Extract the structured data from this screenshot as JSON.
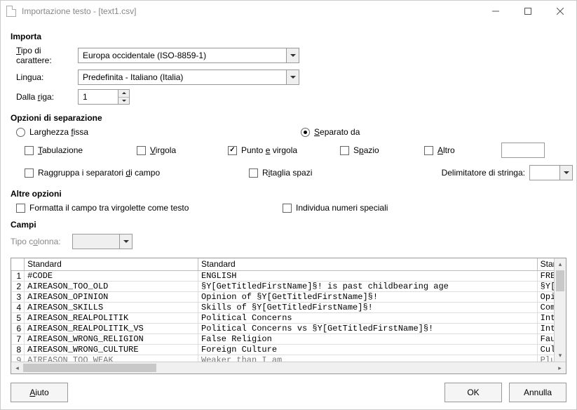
{
  "window": {
    "title": "Importazione testo - [text1.csv]"
  },
  "sections": {
    "importa": "Importa",
    "sep_opts": "Opzioni di separazione",
    "altre": "Altre opzioni",
    "campi": "Campi"
  },
  "labels": {
    "charset": "Tipo di carattere:",
    "lang": "Lingua:",
    "from_row": "Dalla riga:",
    "column_type": "Tipo colonna:",
    "delim_str": "Delimitatore di stringa:"
  },
  "values": {
    "charset_value": "Europa occidentale (ISO-8859-1)",
    "lang_value": "Predefinita - Italiano (Italia)",
    "from_row_value": "1",
    "column_type_value": "",
    "delim_value": "",
    "other_value": ""
  },
  "sep": {
    "fixed_width": "Larghezza fissa",
    "separated_by": "Separato da",
    "tab": "Tabulazione",
    "comma": "Virgola",
    "semicolon": "Punto e virgola",
    "space": "Spazio",
    "other": "Altro",
    "merge": "Raggruppa i separatori di campo",
    "trim": "Ritaglia spazi"
  },
  "other_opts": {
    "quoted_as_text": "Formatta il campo tra virgolette come testo",
    "detect_numbers": "Individua numeri speciali"
  },
  "table": {
    "headers": [
      "Standard",
      "Standard",
      "Stand"
    ],
    "rows": [
      [
        "#CODE",
        "ENGLISH",
        "FREN"
      ],
      [
        "AIREASON_TOO_OLD",
        "§Y[GetTitledFirstName]§! is past childbearing age",
        "§Y[G"
      ],
      [
        "AIREASON_OPINION",
        "Opinion of §Y[GetTitledFirstName]§!",
        "Opin"
      ],
      [
        "AIREASON_SKILLS",
        "Skills of §Y[GetTitledFirstName]§!",
        "Comp"
      ],
      [
        "AIREASON_REALPOLITIK",
        "Political Concerns",
        "Inté"
      ],
      [
        "AIREASON_REALPOLITIK_VS",
        "Political Concerns vs §Y[GetTitledFirstName]§!",
        "Inté"
      ],
      [
        "AIREASON_WRONG_RELIGION",
        "False Religion",
        "Faus"
      ],
      [
        "AIREASON_WRONG_CULTURE",
        "Foreign Culture",
        "Cult"
      ],
      [
        "AIREASON_TOO_WEAK",
        "Weaker than I am",
        "Plus"
      ]
    ]
  },
  "buttons": {
    "help": "Aiuto",
    "ok": "OK",
    "cancel": "Annulla"
  },
  "colors": {
    "border": "#999999",
    "bg": "#ffffff",
    "panel": "#f5f5f5"
  }
}
